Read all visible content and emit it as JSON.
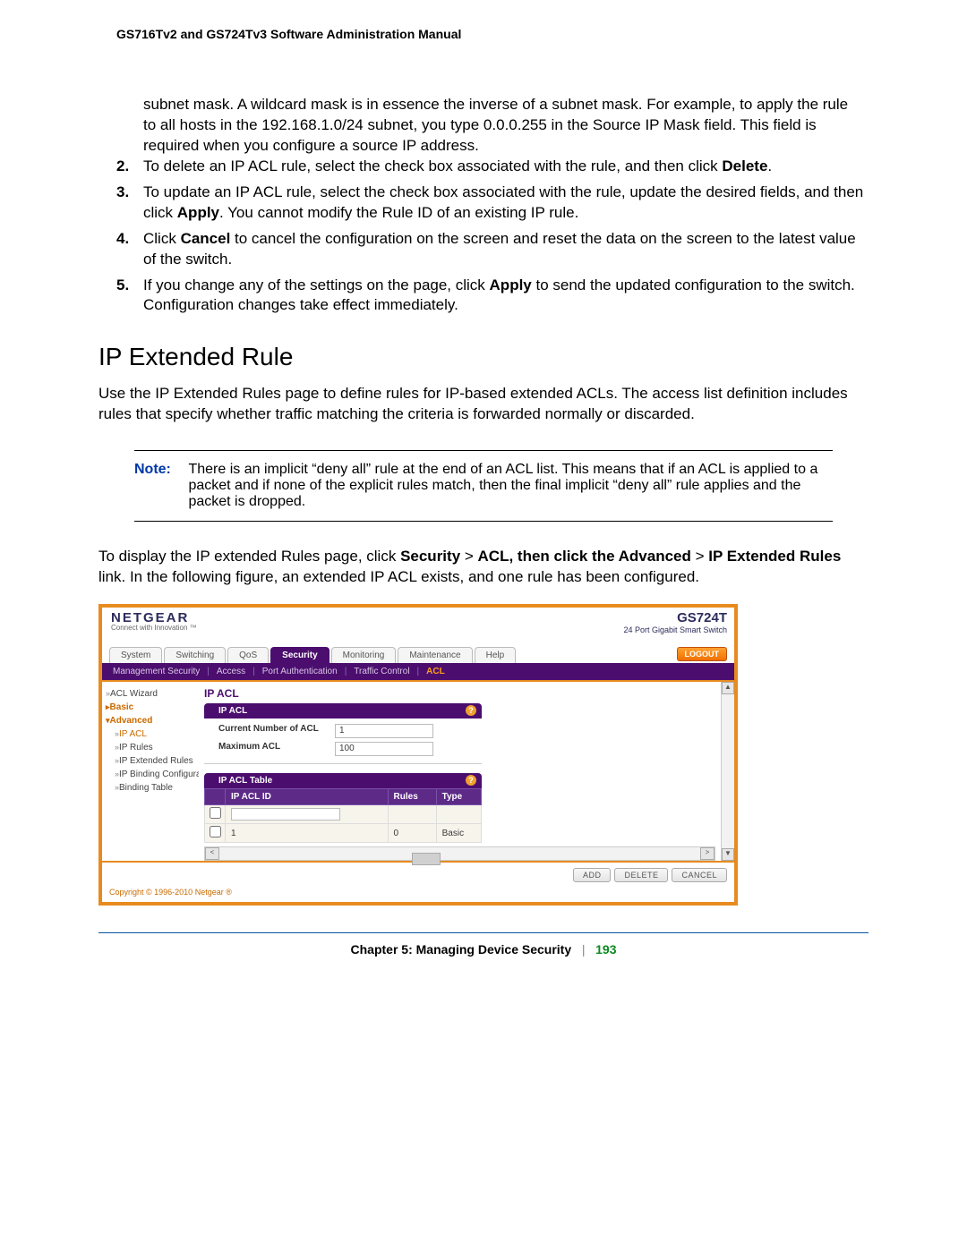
{
  "doc": {
    "header": "GS716Tv2 and GS724Tv3 Software Administration Manual",
    "continuation_text": "subnet mask. A wildcard mask is in essence the inverse of a subnet mask. For example, to apply the rule to all hosts in the 192.168.1.0/24 subnet, you type 0.0.0.255 in the Source IP Mask field. This field is required when you configure a source IP address.",
    "steps": [
      {
        "n": "2.",
        "html": "To delete an IP ACL rule, select the check box associated with the rule, and then click <b>Delete</b>."
      },
      {
        "n": "3.",
        "html": "To update an IP ACL rule, select the check box associated with the rule, update the desired fields, and then click <b>Apply</b>. You cannot modify the Rule ID of an existing IP rule."
      },
      {
        "n": "4.",
        "html": "Click <b>Cancel</b> to cancel the configuration on the screen and reset the data on the screen to the latest value of the switch."
      },
      {
        "n": "5.",
        "html": "If you change any of the settings on the page, click <b>Apply</b> to send the updated configuration to the switch. Configuration changes take effect immediately."
      }
    ],
    "section_title": "IP Extended Rule",
    "section_intro": "Use the IP Extended Rules page to define rules for IP-based extended ACLs. The access list definition includes rules that specify whether traffic matching the criteria is forwarded normally or discarded.",
    "note_label": "Note:",
    "note_text": "There is an implicit “deny all” rule at the end of an ACL list. This means that if an ACL is applied to a packet and if none of the explicit rules match, then the final implicit “deny all” rule applies and the packet is dropped.",
    "to_display_html": "To display the IP extended Rules page, click <b>Security</b> &gt; <b>ACL, then click the Advanced</b> &gt; <b>IP Extended Rules</b> link. In the following figure, an extended IP ACL exists, and one rule has been configured.",
    "footer_chapter": "Chapter 5:  Managing Device Security",
    "footer_bar": "|",
    "footer_page": "193"
  },
  "ui": {
    "brand_name": "NETGEAR",
    "brand_tag": "Connect with Innovation ™",
    "model": "GS724T",
    "model_desc": "24 Port Gigabit Smart Switch",
    "tabs": [
      "System",
      "Switching",
      "QoS",
      "Security",
      "Monitoring",
      "Maintenance",
      "Help"
    ],
    "active_tab": "Security",
    "logout": "LOGOUT",
    "subtabs": [
      "Management Security",
      "Access",
      "Port Authentication",
      "Traffic Control",
      "ACL"
    ],
    "active_subtab": "ACL",
    "sidebar": {
      "items": [
        {
          "label": "ACL Wizard",
          "type": "item"
        },
        {
          "label": "Basic",
          "type": "head"
        },
        {
          "label": "Advanced",
          "type": "head-open"
        },
        {
          "label": "IP ACL",
          "type": "sub-sel"
        },
        {
          "label": "IP Rules",
          "type": "sub"
        },
        {
          "label": "IP Extended Rules",
          "type": "sub"
        },
        {
          "label": "IP Binding Configuration",
          "type": "sub"
        },
        {
          "label": "Binding Table",
          "type": "sub"
        }
      ]
    },
    "main_heading": "IP ACL",
    "panel1": {
      "title": "IP ACL",
      "rows": [
        {
          "k": "Current Number of ACL",
          "v": "1"
        },
        {
          "k": "Maximum ACL",
          "v": "100"
        }
      ]
    },
    "panel2_title": "IP ACL Table",
    "table": {
      "columns": [
        "IP ACL ID",
        "Rules",
        "Type"
      ],
      "rows": [
        {
          "id": "1",
          "rules": "0",
          "type": "Basic"
        }
      ]
    },
    "buttons": [
      "ADD",
      "DELETE",
      "CANCEL"
    ],
    "copyright": "Copyright © 1996-2010 Netgear ®"
  },
  "colors": {
    "brand_orange": "#e88b1e",
    "brand_purple": "#4b0e6e",
    "link_blue": "#0038a8",
    "rule_blue": "#0a56a0",
    "page_green": "#0a8a20",
    "side_orange": "#c96a00"
  }
}
